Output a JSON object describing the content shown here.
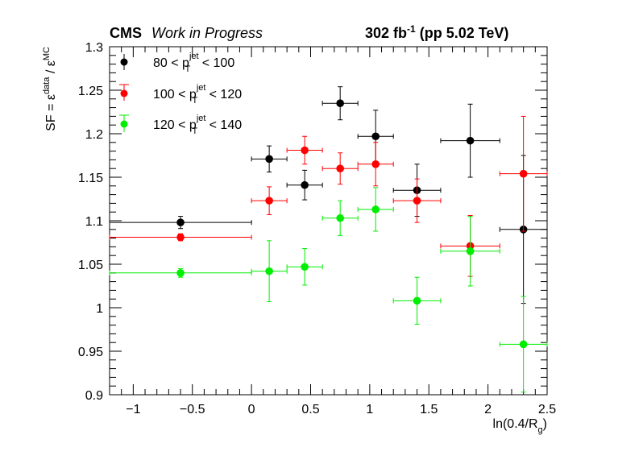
{
  "header": {
    "experiment": "CMS",
    "status": "Work in Progress",
    "lumi_value": "302 fb",
    "lumi_exp": "-1",
    "lumi_rest": " (pp 5.02 TeV)"
  },
  "chart_data": {
    "type": "scatter",
    "xlabel": "ln(0.4/R",
    "xlabel_sub": "g",
    "xlabel_close": ")",
    "ylabel": "SF = ε",
    "ylabel_sup1": "data",
    "ylabel_mid": " / ε",
    "ylabel_sup2": "MC",
    "xlim": [
      -1.2,
      2.5
    ],
    "ylim": [
      0.9,
      1.3
    ],
    "x_ticks": [
      {
        "v": -1,
        "label": "−1"
      },
      {
        "v": -0.5,
        "label": "−0.5"
      },
      {
        "v": 0,
        "label": "0"
      },
      {
        "v": 0.5,
        "label": "0.5"
      },
      {
        "v": 1,
        "label": "1"
      },
      {
        "v": 1.5,
        "label": "1.5"
      },
      {
        "v": 2,
        "label": "2"
      },
      {
        "v": 2.5,
        "label": "2.5"
      }
    ],
    "y_ticks": [
      {
        "v": 0.9,
        "label": "0.9"
      },
      {
        "v": 0.95,
        "label": "0.95"
      },
      {
        "v": 1,
        "label": "1"
      },
      {
        "v": 1.05,
        "label": "1.05"
      },
      {
        "v": 1.1,
        "label": "1.1"
      },
      {
        "v": 1.15,
        "label": "1.15"
      },
      {
        "v": 1.2,
        "label": "1.2"
      },
      {
        "v": 1.25,
        "label": "1.25"
      },
      {
        "v": 1.3,
        "label": "1.3"
      }
    ],
    "legend_position": "top-left",
    "series": [
      {
        "color": "#000000",
        "legend": {
          "pre": "80 < p",
          "sup": "jet",
          "sub": "T",
          "post": " < 100"
        },
        "points": [
          {
            "x": -0.6,
            "xlo": -1.2,
            "xhi": 0.0,
            "y": 1.098,
            "err": 0.007
          },
          {
            "x": 0.15,
            "xlo": 0.0,
            "xhi": 0.3,
            "y": 1.171,
            "err": 0.015
          },
          {
            "x": 0.45,
            "xlo": 0.3,
            "xhi": 0.6,
            "y": 1.141,
            "err": 0.017
          },
          {
            "x": 0.75,
            "xlo": 0.6,
            "xhi": 0.9,
            "y": 1.235,
            "err": 0.019
          },
          {
            "x": 1.05,
            "xlo": 0.9,
            "xhi": 1.2,
            "y": 1.197,
            "err": 0.03
          },
          {
            "x": 1.4,
            "xlo": 1.2,
            "xhi": 1.6,
            "y": 1.135,
            "err": 0.03
          },
          {
            "x": 1.85,
            "xlo": 1.6,
            "xhi": 2.1,
            "y": 1.192,
            "err": 0.042
          },
          {
            "x": 2.3,
            "xlo": 2.1,
            "xhi": 2.5,
            "y": 1.09,
            "err": 0.085
          }
        ]
      },
      {
        "color": "#ff0000",
        "legend": {
          "pre": "100 < p",
          "sup": "jet",
          "sub": "T",
          "post": " < 120"
        },
        "points": [
          {
            "x": -0.6,
            "xlo": -1.2,
            "xhi": 0.0,
            "y": 1.081,
            "err": 0.004
          },
          {
            "x": 0.15,
            "xlo": 0.0,
            "xhi": 0.3,
            "y": 1.123,
            "err": 0.016
          },
          {
            "x": 0.45,
            "xlo": 0.3,
            "xhi": 0.6,
            "y": 1.181,
            "err": 0.016
          },
          {
            "x": 0.75,
            "xlo": 0.6,
            "xhi": 0.9,
            "y": 1.16,
            "err": 0.018
          },
          {
            "x": 1.05,
            "xlo": 0.9,
            "xhi": 1.2,
            "y": 1.165,
            "err": 0.025
          },
          {
            "x": 1.4,
            "xlo": 1.2,
            "xhi": 1.6,
            "y": 1.123,
            "err": 0.025
          },
          {
            "x": 1.85,
            "xlo": 1.6,
            "xhi": 2.1,
            "y": 1.071,
            "err": 0.035
          },
          {
            "x": 2.3,
            "xlo": 2.1,
            "xhi": 2.5,
            "y": 1.154,
            "err": 0.066
          }
        ]
      },
      {
        "color": "#00ee00",
        "legend": {
          "pre": "120 < p",
          "sup": "jet",
          "sub": "T",
          "post": " < 140"
        },
        "points": [
          {
            "x": -0.6,
            "xlo": -1.2,
            "xhi": 0.0,
            "y": 1.04,
            "err": 0.005
          },
          {
            "x": 0.15,
            "xlo": 0.0,
            "xhi": 0.3,
            "y": 1.042,
            "err": 0.035
          },
          {
            "x": 0.45,
            "xlo": 0.3,
            "xhi": 0.6,
            "y": 1.047,
            "err": 0.021
          },
          {
            "x": 0.75,
            "xlo": 0.6,
            "xhi": 0.9,
            "y": 1.103,
            "err": 0.02
          },
          {
            "x": 1.05,
            "xlo": 0.9,
            "xhi": 1.2,
            "y": 1.113,
            "err": 0.025
          },
          {
            "x": 1.4,
            "xlo": 1.2,
            "xhi": 1.6,
            "y": 1.008,
            "err": 0.027
          },
          {
            "x": 1.85,
            "xlo": 1.6,
            "xhi": 2.1,
            "y": 1.065,
            "err": 0.04
          },
          {
            "x": 2.3,
            "xlo": 2.1,
            "xhi": 2.5,
            "y": 0.958,
            "err": 0.055
          }
        ]
      }
    ]
  }
}
